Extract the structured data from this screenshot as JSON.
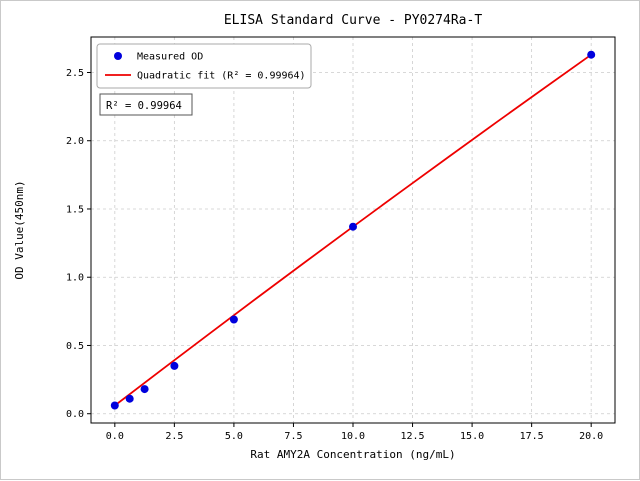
{
  "chart_data": {
    "type": "scatter",
    "title": "ELISA Standard Curve - PY0274Ra-T",
    "xlabel": "Rat AMY2A Concentration (ng/mL)",
    "ylabel": "OD Value(450nm)",
    "xlim": [
      -1,
      21
    ],
    "ylim": [
      -0.068,
      2.76
    ],
    "xticks": [
      0,
      2.5,
      5,
      7.5,
      10,
      12.5,
      15,
      17.5,
      20
    ],
    "xtick_labels": [
      "0.0",
      "2.5",
      "5.0",
      "7.5",
      "10.0",
      "12.5",
      "15.0",
      "17.5",
      "20.0"
    ],
    "yticks": [
      0,
      0.5,
      1,
      1.5,
      2,
      2.5
    ],
    "ytick_labels": [
      "0.0",
      "0.5",
      "1.0",
      "1.5",
      "2.0",
      "2.5"
    ],
    "grid": true,
    "grid_style": "dashed",
    "annotation": "R² = 0.99964",
    "colors": {
      "points": "#0000dd",
      "fit_line": "#ee0000",
      "grid": "#cccccc",
      "spine": "#000000"
    },
    "legend": {
      "position": "upper-left",
      "items": [
        {
          "label": "Measured OD",
          "marker": "point",
          "color": "#0000dd"
        },
        {
          "label": "Quadratic fit (R² = 0.99964)",
          "marker": "line",
          "color": "#ee0000"
        }
      ]
    },
    "series": [
      {
        "name": "Quadratic fit",
        "type": "line",
        "color": "#ee0000",
        "points": [
          [
            0,
            0.06
          ],
          [
            2,
            0.326
          ],
          [
            4,
            0.59
          ],
          [
            6,
            0.852
          ],
          [
            8,
            1.112
          ],
          [
            10,
            1.37
          ],
          [
            12,
            1.626
          ],
          [
            14,
            1.88
          ],
          [
            16,
            2.132
          ],
          [
            18,
            2.382
          ],
          [
            20,
            2.63
          ]
        ]
      },
      {
        "name": "Measured OD",
        "type": "scatter",
        "color": "#0000dd",
        "points": [
          [
            0,
            0.06
          ],
          [
            0.625,
            0.11
          ],
          [
            1.25,
            0.18
          ],
          [
            2.5,
            0.35
          ],
          [
            5,
            0.69
          ],
          [
            10,
            1.37
          ],
          [
            20,
            2.63
          ]
        ]
      }
    ]
  }
}
